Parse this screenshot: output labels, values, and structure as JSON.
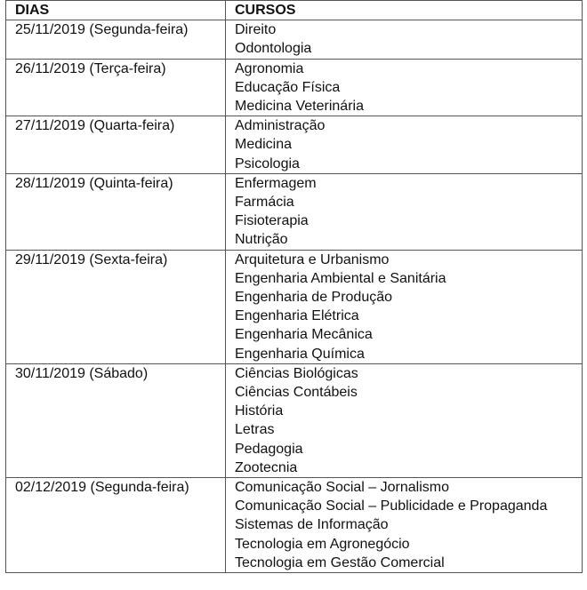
{
  "header": {
    "days": "DIAS",
    "courses": "CURSOS"
  },
  "rows": [
    {
      "day": "25/11/2019 (Segunda-feira)",
      "courses": [
        "Direito",
        "Odontologia"
      ]
    },
    {
      "day": "26/11/2019 (Terça-feira)",
      "courses": [
        "Agronomia",
        "Educação Física",
        "Medicina Veterinária"
      ]
    },
    {
      "day": "27/11/2019 (Quarta-feira)",
      "courses": [
        "Administração",
        "Medicina",
        "Psicologia"
      ]
    },
    {
      "day": "28/11/2019 (Quinta-feira)",
      "courses": [
        "Enfermagem",
        "Farmácia",
        "Fisioterapia",
        "Nutrição"
      ]
    },
    {
      "day": "29/11/2019 (Sexta-feira)",
      "courses": [
        "Arquitetura e Urbanismo",
        "Engenharia Ambiental e Sanitária",
        "Engenharia de Produção",
        "Engenharia Elétrica",
        "Engenharia Mecânica",
        "Engenharia Química"
      ]
    },
    {
      "day": "30/11/2019 (Sábado)",
      "courses": [
        "Ciências Biológicas",
        "Ciências Contábeis",
        "História",
        "Letras",
        "Pedagogia",
        "Zootecnia"
      ]
    },
    {
      "day": "02/12/2019 (Segunda-feira)",
      "courses": [
        "Comunicação Social – Jornalismo",
        "Comunicação Social – Publicidade e Propaganda",
        "Sistemas de Informação",
        "Tecnologia em Agronegócio",
        "Tecnologia em Gestão Comercial"
      ]
    }
  ]
}
